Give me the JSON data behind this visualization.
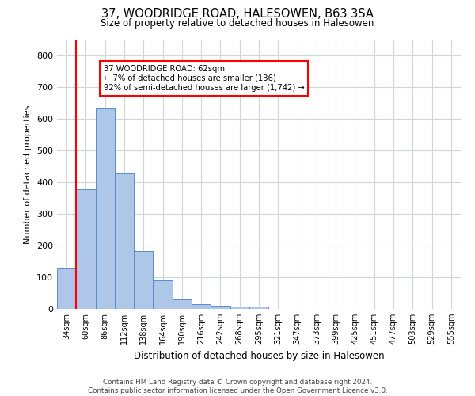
{
  "title": "37, WOODRIDGE ROAD, HALESOWEN, B63 3SA",
  "subtitle": "Size of property relative to detached houses in Halesowen",
  "xlabel": "Distribution of detached houses by size in Halesowen",
  "ylabel": "Number of detached properties",
  "bar_values": [
    127,
    378,
    635,
    427,
    183,
    90,
    31,
    16,
    10,
    8,
    8,
    0,
    0,
    0,
    0,
    0,
    0,
    0,
    0,
    0,
    0
  ],
  "bar_labels": [
    "34sqm",
    "60sqm",
    "86sqm",
    "112sqm",
    "138sqm",
    "164sqm",
    "190sqm",
    "216sqm",
    "242sqm",
    "268sqm",
    "295sqm",
    "321sqm",
    "347sqm",
    "373sqm",
    "399sqm",
    "425sqm",
    "451sqm",
    "477sqm",
    "503sqm",
    "529sqm",
    "555sqm"
  ],
  "bar_color": "#aec6e8",
  "bar_edgecolor": "#5b8cc8",
  "annotation_line1": "37 WOODRIDGE ROAD: 62sqm",
  "annotation_line2": "← 7% of detached houses are smaller (136)",
  "annotation_line3": "92% of semi-detached houses are larger (1,742) →",
  "vline_bar_index": 1,
  "ylim": [
    0,
    850
  ],
  "yticks": [
    0,
    100,
    200,
    300,
    400,
    500,
    600,
    700,
    800
  ],
  "footer_line1": "Contains HM Land Registry data © Crown copyright and database right 2024.",
  "footer_line2": "Contains public sector information licensed under the Open Government Licence v3.0.",
  "background_color": "#ffffff",
  "grid_color": "#cdd5e0"
}
